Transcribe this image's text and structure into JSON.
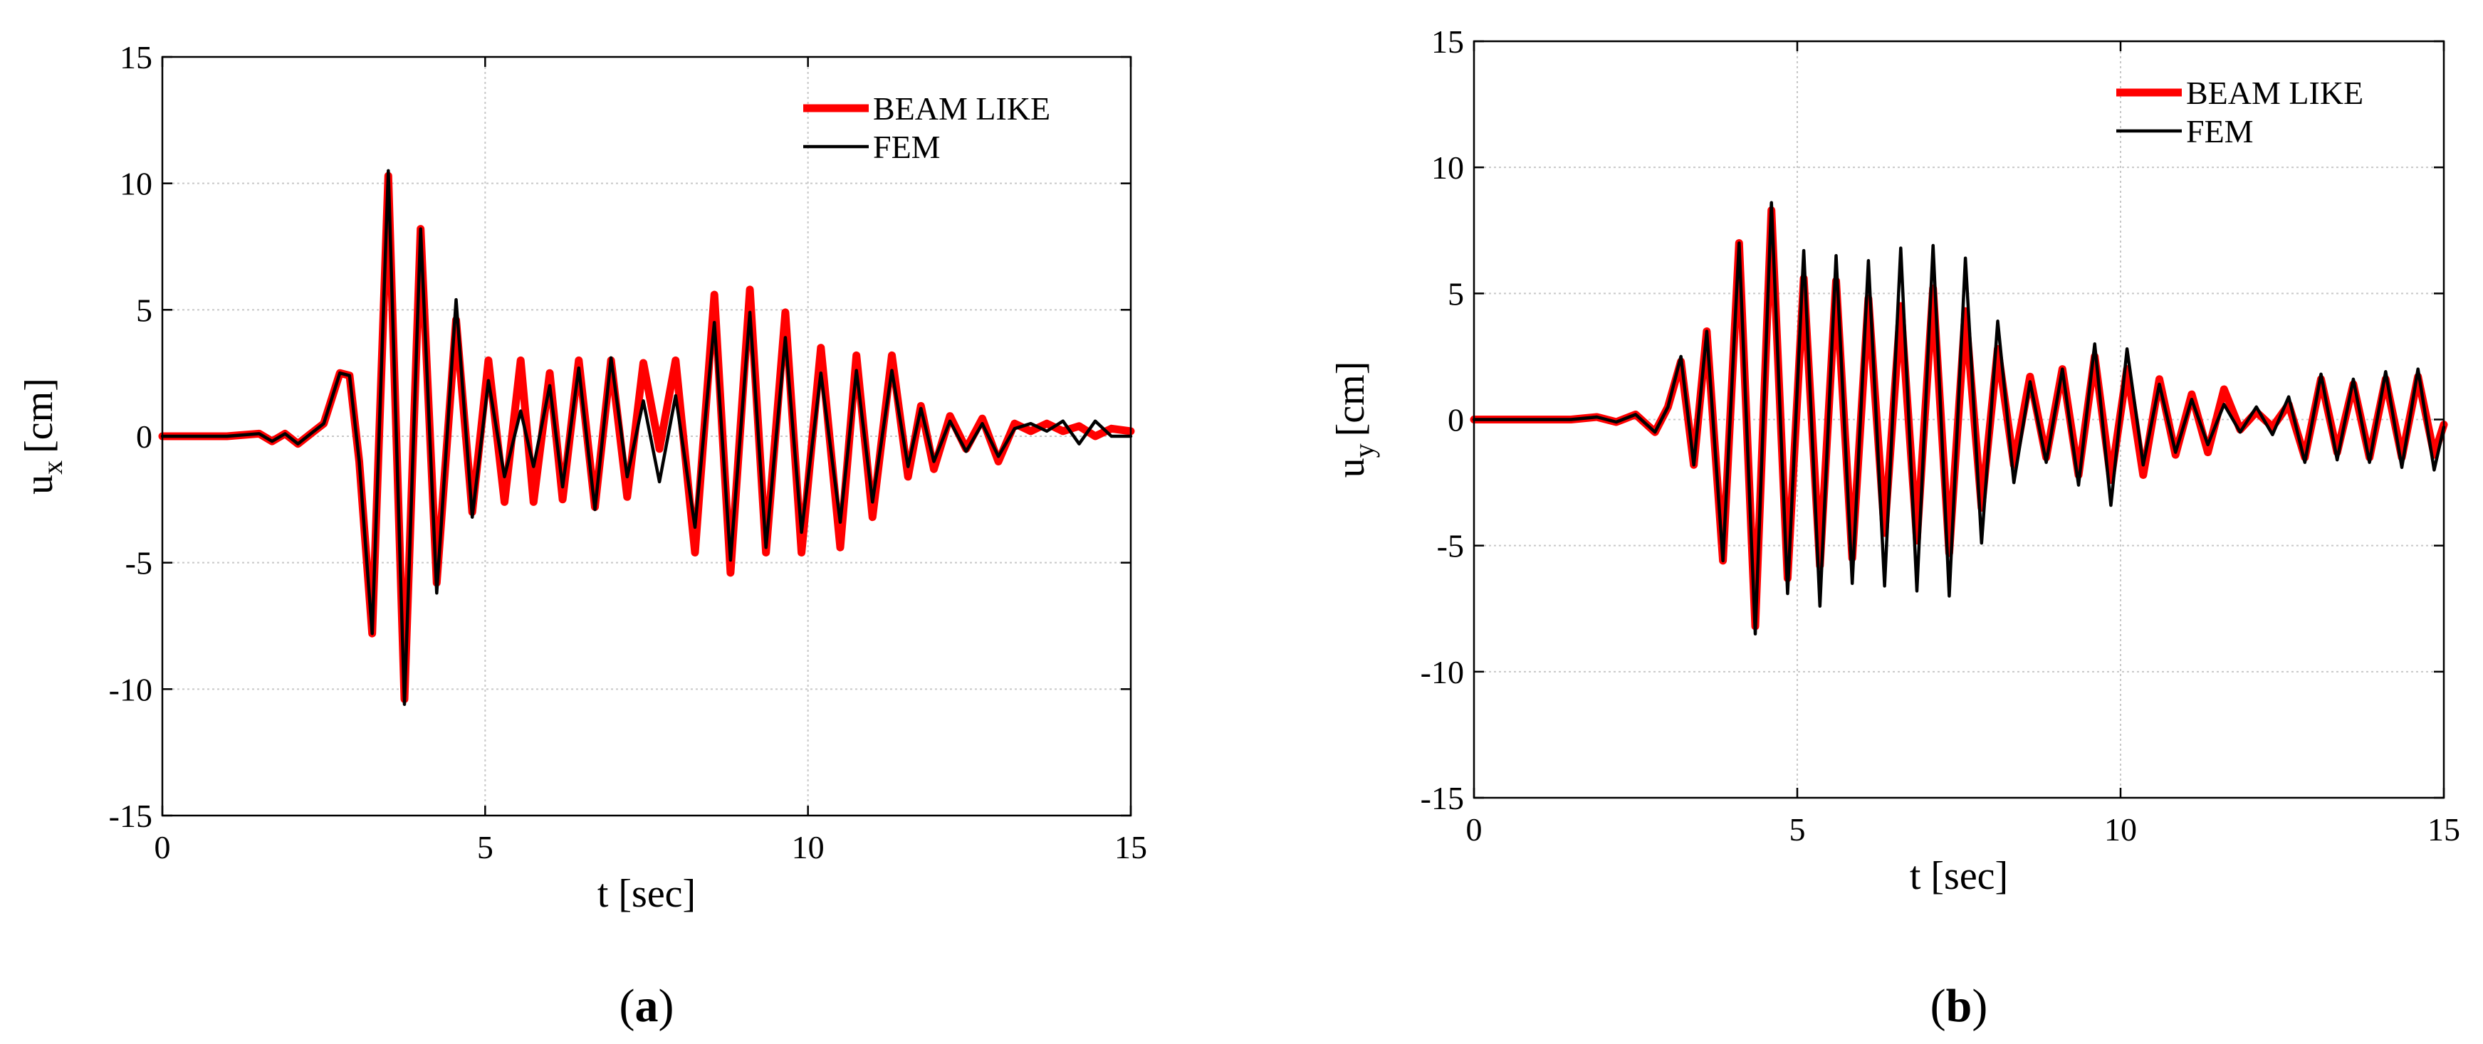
{
  "colors": {
    "beam_like": "#ff0000",
    "fem": "#000000",
    "grid": "#c8c8c8"
  },
  "chart_data": [
    {
      "type": "line",
      "panel_label": "(a)",
      "panel_letter": "a",
      "xlabel": "t [sec]",
      "ylabel_base": "u",
      "ylabel_sub": "x",
      "ylabel_unit": "[cm]",
      "xlim": [
        0,
        15
      ],
      "ylim": [
        -15,
        15
      ],
      "xticks": [
        0,
        5,
        10,
        15
      ],
      "yticks": [
        -15,
        -10,
        -5,
        0,
        5,
        10,
        15
      ],
      "grid": true,
      "legend_position": "top-right",
      "legend": [
        "BEAM LIKE",
        "FEM"
      ],
      "series": [
        {
          "name": "BEAM LIKE",
          "color": "#ff0000",
          "points": [
            [
              0,
              0
            ],
            [
              1.0,
              0
            ],
            [
              1.5,
              0.1
            ],
            [
              1.7,
              -0.2
            ],
            [
              1.9,
              0.1
            ],
            [
              2.1,
              -0.3
            ],
            [
              2.3,
              0.1
            ],
            [
              2.5,
              0.5
            ],
            [
              2.75,
              2.5
            ],
            [
              2.9,
              2.4
            ],
            [
              3.05,
              -1.0
            ],
            [
              3.25,
              -7.8
            ],
            [
              3.5,
              10.3
            ],
            [
              3.75,
              -10.4
            ],
            [
              4.0,
              8.2
            ],
            [
              4.25,
              -5.8
            ],
            [
              4.55,
              4.6
            ],
            [
              4.8,
              -3.0
            ],
            [
              5.05,
              3.0
            ],
            [
              5.3,
              -2.6
            ],
            [
              5.55,
              3.0
            ],
            [
              5.75,
              -2.6
            ],
            [
              6.0,
              2.5
            ],
            [
              6.2,
              -2.5
            ],
            [
              6.45,
              3.0
            ],
            [
              6.7,
              -2.8
            ],
            [
              6.95,
              3.0
            ],
            [
              7.2,
              -2.4
            ],
            [
              7.45,
              2.9
            ],
            [
              7.7,
              -0.5
            ],
            [
              7.95,
              3.0
            ],
            [
              8.25,
              -4.6
            ],
            [
              8.55,
              5.6
            ],
            [
              8.8,
              -5.4
            ],
            [
              9.1,
              5.8
            ],
            [
              9.35,
              -4.6
            ],
            [
              9.65,
              4.9
            ],
            [
              9.9,
              -4.6
            ],
            [
              10.2,
              3.5
            ],
            [
              10.5,
              -4.4
            ],
            [
              10.75,
              3.2
            ],
            [
              11.0,
              -3.2
            ],
            [
              11.3,
              3.2
            ],
            [
              11.55,
              -1.6
            ],
            [
              11.75,
              1.2
            ],
            [
              11.95,
              -1.3
            ],
            [
              12.2,
              0.8
            ],
            [
              12.45,
              -0.5
            ],
            [
              12.7,
              0.7
            ],
            [
              12.95,
              -1.0
            ],
            [
              13.2,
              0.5
            ],
            [
              13.45,
              0.2
            ],
            [
              13.7,
              0.5
            ],
            [
              13.95,
              0.2
            ],
            [
              14.2,
              0.4
            ],
            [
              14.45,
              0.0
            ],
            [
              14.7,
              0.3
            ],
            [
              15.0,
              0.2
            ]
          ]
        },
        {
          "name": "FEM",
          "color": "#000000",
          "points": [
            [
              0,
              0
            ],
            [
              1.0,
              0
            ],
            [
              1.5,
              0.1
            ],
            [
              1.7,
              -0.2
            ],
            [
              1.9,
              0.1
            ],
            [
              2.1,
              -0.3
            ],
            [
              2.3,
              0.1
            ],
            [
              2.5,
              0.5
            ],
            [
              2.75,
              2.5
            ],
            [
              2.9,
              2.4
            ],
            [
              3.05,
              -1.0
            ],
            [
              3.25,
              -7.8
            ],
            [
              3.5,
              10.5
            ],
            [
              3.75,
              -10.6
            ],
            [
              4.0,
              8.2
            ],
            [
              4.25,
              -6.2
            ],
            [
              4.55,
              5.4
            ],
            [
              4.8,
              -3.2
            ],
            [
              5.05,
              2.2
            ],
            [
              5.3,
              -1.6
            ],
            [
              5.55,
              1.0
            ],
            [
              5.75,
              -1.2
            ],
            [
              6.0,
              2.0
            ],
            [
              6.2,
              -2.0
            ],
            [
              6.45,
              2.7
            ],
            [
              6.7,
              -2.9
            ],
            [
              6.95,
              3.1
            ],
            [
              7.2,
              -1.6
            ],
            [
              7.45,
              1.4
            ],
            [
              7.7,
              -1.8
            ],
            [
              7.95,
              1.6
            ],
            [
              8.25,
              -3.6
            ],
            [
              8.55,
              4.5
            ],
            [
              8.8,
              -4.9
            ],
            [
              9.1,
              4.9
            ],
            [
              9.35,
              -4.4
            ],
            [
              9.65,
              3.9
            ],
            [
              9.9,
              -3.8
            ],
            [
              10.2,
              2.5
            ],
            [
              10.5,
              -3.4
            ],
            [
              10.75,
              2.6
            ],
            [
              11.0,
              -2.6
            ],
            [
              11.3,
              2.6
            ],
            [
              11.55,
              -1.2
            ],
            [
              11.75,
              1.1
            ],
            [
              11.95,
              -1.0
            ],
            [
              12.2,
              0.6
            ],
            [
              12.45,
              -0.6
            ],
            [
              12.7,
              0.5
            ],
            [
              12.95,
              -0.8
            ],
            [
              13.2,
              0.3
            ],
            [
              13.45,
              0.5
            ],
            [
              13.7,
              0.2
            ],
            [
              13.95,
              0.6
            ],
            [
              14.2,
              -0.3
            ],
            [
              14.45,
              0.6
            ],
            [
              14.7,
              0.0
            ],
            [
              15.0,
              0.0
            ]
          ]
        }
      ]
    },
    {
      "type": "line",
      "panel_label": "(b)",
      "panel_letter": "b",
      "xlabel": "t [sec]",
      "ylabel_base": "u",
      "ylabel_sub": "y",
      "ylabel_unit": "[cm]",
      "xlim": [
        0,
        15
      ],
      "ylim": [
        -15,
        15
      ],
      "xticks": [
        0,
        5,
        10,
        15
      ],
      "yticks": [
        -15,
        -10,
        -5,
        0,
        5,
        10,
        15
      ],
      "grid": true,
      "legend_position": "top-right",
      "legend": [
        "BEAM LIKE",
        "FEM"
      ],
      "series": [
        {
          "name": "BEAM LIKE",
          "color": "#ff0000",
          "points": [
            [
              0,
              0
            ],
            [
              1.5,
              0
            ],
            [
              1.9,
              0.1
            ],
            [
              2.2,
              -0.1
            ],
            [
              2.5,
              0.2
            ],
            [
              2.8,
              -0.5
            ],
            [
              3.0,
              0.5
            ],
            [
              3.2,
              2.3
            ],
            [
              3.4,
              -1.8
            ],
            [
              3.6,
              3.5
            ],
            [
              3.85,
              -5.6
            ],
            [
              4.1,
              7.0
            ],
            [
              4.35,
              -8.2
            ],
            [
              4.6,
              8.3
            ],
            [
              4.85,
              -6.3
            ],
            [
              5.1,
              5.6
            ],
            [
              5.35,
              -5.8
            ],
            [
              5.6,
              5.5
            ],
            [
              5.85,
              -5.5
            ],
            [
              6.1,
              4.8
            ],
            [
              6.35,
              -4.5
            ],
            [
              6.6,
              4.5
            ],
            [
              6.85,
              -4.8
            ],
            [
              7.1,
              5.2
            ],
            [
              7.35,
              -5.3
            ],
            [
              7.6,
              4.3
            ],
            [
              7.85,
              -3.5
            ],
            [
              8.1,
              2.8
            ],
            [
              8.35,
              -1.8
            ],
            [
              8.6,
              1.7
            ],
            [
              8.85,
              -1.5
            ],
            [
              9.1,
              2.0
            ],
            [
              9.35,
              -2.2
            ],
            [
              9.6,
              2.5
            ],
            [
              9.85,
              -2.4
            ],
            [
              10.1,
              2.0
            ],
            [
              10.35,
              -2.2
            ],
            [
              10.6,
              1.6
            ],
            [
              10.85,
              -1.4
            ],
            [
              11.1,
              1.0
            ],
            [
              11.35,
              -1.3
            ],
            [
              11.6,
              1.2
            ],
            [
              11.85,
              -0.4
            ],
            [
              12.1,
              0.3
            ],
            [
              12.35,
              -0.3
            ],
            [
              12.6,
              0.6
            ],
            [
              12.85,
              -1.5
            ],
            [
              13.1,
              1.6
            ],
            [
              13.35,
              -1.3
            ],
            [
              13.6,
              1.4
            ],
            [
              13.85,
              -1.5
            ],
            [
              14.1,
              1.6
            ],
            [
              14.35,
              -1.5
            ],
            [
              14.6,
              1.7
            ],
            [
              14.85,
              -1.4
            ],
            [
              15.0,
              -0.2
            ]
          ]
        },
        {
          "name": "FEM",
          "color": "#000000",
          "points": [
            [
              0,
              0
            ],
            [
              1.5,
              0
            ],
            [
              1.9,
              0.1
            ],
            [
              2.2,
              -0.1
            ],
            [
              2.5,
              0.2
            ],
            [
              2.8,
              -0.5
            ],
            [
              3.0,
              0.5
            ],
            [
              3.2,
              2.5
            ],
            [
              3.4,
              -1.8
            ],
            [
              3.6,
              3.5
            ],
            [
              3.85,
              -5.6
            ],
            [
              4.1,
              7.0
            ],
            [
              4.35,
              -8.5
            ],
            [
              4.6,
              8.6
            ],
            [
              4.85,
              -6.9
            ],
            [
              5.1,
              6.7
            ],
            [
              5.35,
              -7.4
            ],
            [
              5.6,
              6.5
            ],
            [
              5.85,
              -6.5
            ],
            [
              6.1,
              6.3
            ],
            [
              6.35,
              -6.6
            ],
            [
              6.6,
              6.8
            ],
            [
              6.85,
              -6.8
            ],
            [
              7.1,
              6.9
            ],
            [
              7.35,
              -7.0
            ],
            [
              7.6,
              6.4
            ],
            [
              7.85,
              -4.9
            ],
            [
              8.1,
              3.9
            ],
            [
              8.35,
              -2.5
            ],
            [
              8.6,
              1.5
            ],
            [
              8.85,
              -1.7
            ],
            [
              9.1,
              2.0
            ],
            [
              9.35,
              -2.6
            ],
            [
              9.6,
              3.0
            ],
            [
              9.85,
              -3.4
            ],
            [
              10.1,
              2.8
            ],
            [
              10.35,
              -1.8
            ],
            [
              10.6,
              1.4
            ],
            [
              10.85,
              -1.3
            ],
            [
              11.1,
              0.8
            ],
            [
              11.35,
              -1.0
            ],
            [
              11.6,
              0.6
            ],
            [
              11.85,
              -0.5
            ],
            [
              12.1,
              0.5
            ],
            [
              12.35,
              -0.6
            ],
            [
              12.6,
              0.9
            ],
            [
              12.85,
              -1.7
            ],
            [
              13.1,
              1.8
            ],
            [
              13.35,
              -1.6
            ],
            [
              13.6,
              1.6
            ],
            [
              13.85,
              -1.7
            ],
            [
              14.1,
              1.9
            ],
            [
              14.35,
              -1.9
            ],
            [
              14.6,
              2.0
            ],
            [
              14.85,
              -2.0
            ],
            [
              15.0,
              -0.3
            ]
          ]
        }
      ]
    }
  ]
}
